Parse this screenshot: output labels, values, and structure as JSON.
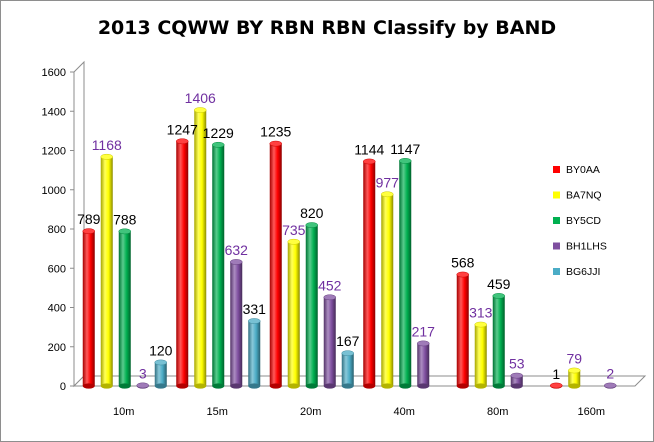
{
  "chart_data": {
    "type": "bar",
    "title": "2013 CQWW BY RBN RBN  Classify by BAND",
    "categories": [
      "10m",
      "15m",
      "20m",
      "40m",
      "80m",
      "160m"
    ],
    "y_ticks": [
      "0",
      "200",
      "400",
      "600",
      "800",
      "1000",
      "1200",
      "1400",
      "1600"
    ],
    "ylim": [
      0,
      1600
    ],
    "legend_position": "right",
    "grid": false,
    "series": [
      {
        "name": "BY0AA",
        "color": "#ff0000",
        "label_color": "#000000",
        "values": [
          789,
          1247,
          1235,
          1144,
          568,
          1
        ]
      },
      {
        "name": "BA7NQ",
        "color": "#ffff00",
        "label_color": "#7030a0",
        "values": [
          1168,
          1406,
          735,
          977,
          313,
          79
        ]
      },
      {
        "name": "BY5CD",
        "color": "#00b050",
        "label_color": "#000000",
        "values": [
          788,
          1229,
          820,
          1147,
          459,
          null
        ]
      },
      {
        "name": "BH1LHS",
        "color": "#7f4fa0",
        "label_color": "#7030a0",
        "values": [
          3,
          632,
          452,
          217,
          53,
          2
        ]
      },
      {
        "name": "BG6JJI",
        "color": "#4bacc6",
        "label_color": "#000000",
        "values": [
          120,
          331,
          167,
          null,
          null,
          null
        ]
      }
    ]
  }
}
